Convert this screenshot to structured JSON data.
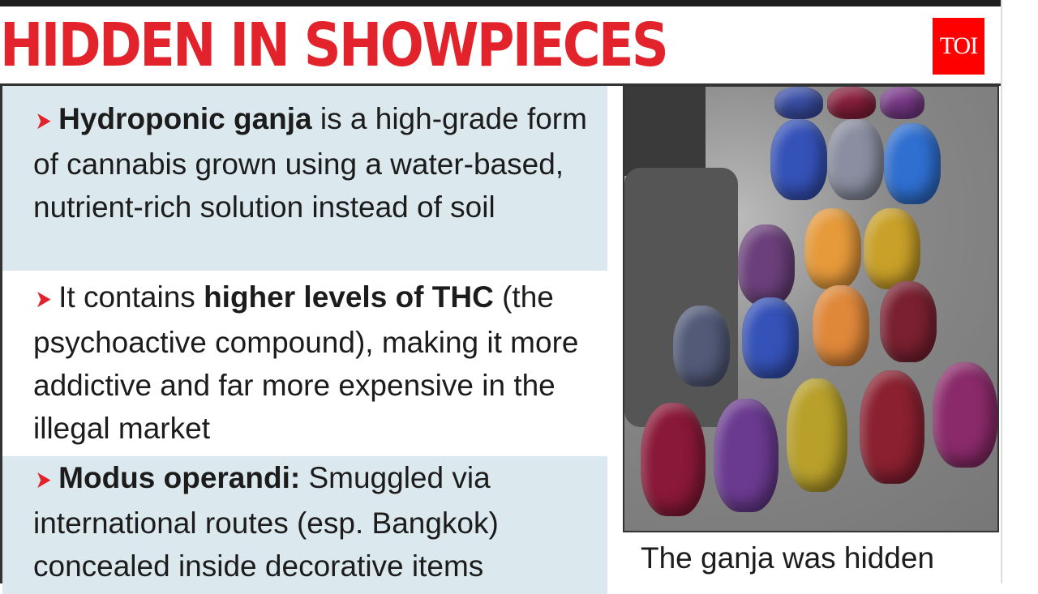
{
  "headline": "HIDDEN IN SHOWPIECES",
  "logo": "TOI",
  "bullets": [
    {
      "bold": "Hydroponic ganja",
      "text": " is a high-grade form of cannabis grown using a water-based, nutrient-rich solution instead of soil",
      "before": ""
    },
    {
      "before": "It contains ",
      "bold": "higher levels of THC",
      "text": " (the psychoactive compound), making it more addictive and far more expensive in the illegal market"
    },
    {
      "bold": "Modus operandi:",
      "text": " Smuggled via international routes (esp. Bangkok) concealed inside decorative items",
      "before": ""
    }
  ],
  "photo": {
    "icon": "skull-showpieces-photo"
  },
  "caption": "The ganja was hidden",
  "colors": {
    "headline": "#e3232b",
    "logo": "#ff0000",
    "band": "#dbe9ef"
  }
}
